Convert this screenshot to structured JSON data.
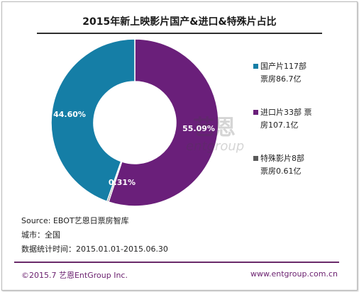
{
  "title": "2015年新上映影片国产&进口&特殊片占比",
  "colors": {
    "domestic": "#157ea6",
    "imported": "#6a1f7a",
    "special": "#5a5a5a",
    "footer": "#6a1f6e"
  },
  "chart_data": {
    "type": "pie",
    "style": "donut",
    "title": "2015年新上映影片国产&进口&特殊片占比",
    "slices": [
      {
        "name": "国产片117部 票房86.7亿",
        "pct_label": "44.60%",
        "value": 44.6,
        "color": "#157ea6"
      },
      {
        "name": "进口片33部 票房107.1亿",
        "pct_label": "55.09%",
        "value": 55.09,
        "color": "#6a1f7a"
      },
      {
        "name": "特殊影片8部 票房0.61亿",
        "pct_label": "0.31%",
        "value": 0.31,
        "color": "#5a5a5a"
      }
    ],
    "legend_position": "right"
  },
  "legend": [
    {
      "line1": "国产片117部",
      "line2": "票房86.7亿",
      "icon": "square-swatch"
    },
    {
      "line1": "进口片33部 票",
      "line2": "房107.1亿",
      "icon": "square-swatch"
    },
    {
      "line1": "特殊影片8部",
      "line2": "票房0.61亿",
      "icon": "square-swatch"
    }
  ],
  "watermark": {
    "text": "艺恩",
    "sub": "entgroup"
  },
  "source": {
    "line1": "Source: EBOT艺恩日票房智库",
    "line2": "城市：全国",
    "line3": "数据统计时间：2015.01.01-2015.06.30"
  },
  "footer": {
    "left": "©2015.7 艺恩EntGroup Inc.",
    "right": "www.entgroup.com.cn"
  }
}
